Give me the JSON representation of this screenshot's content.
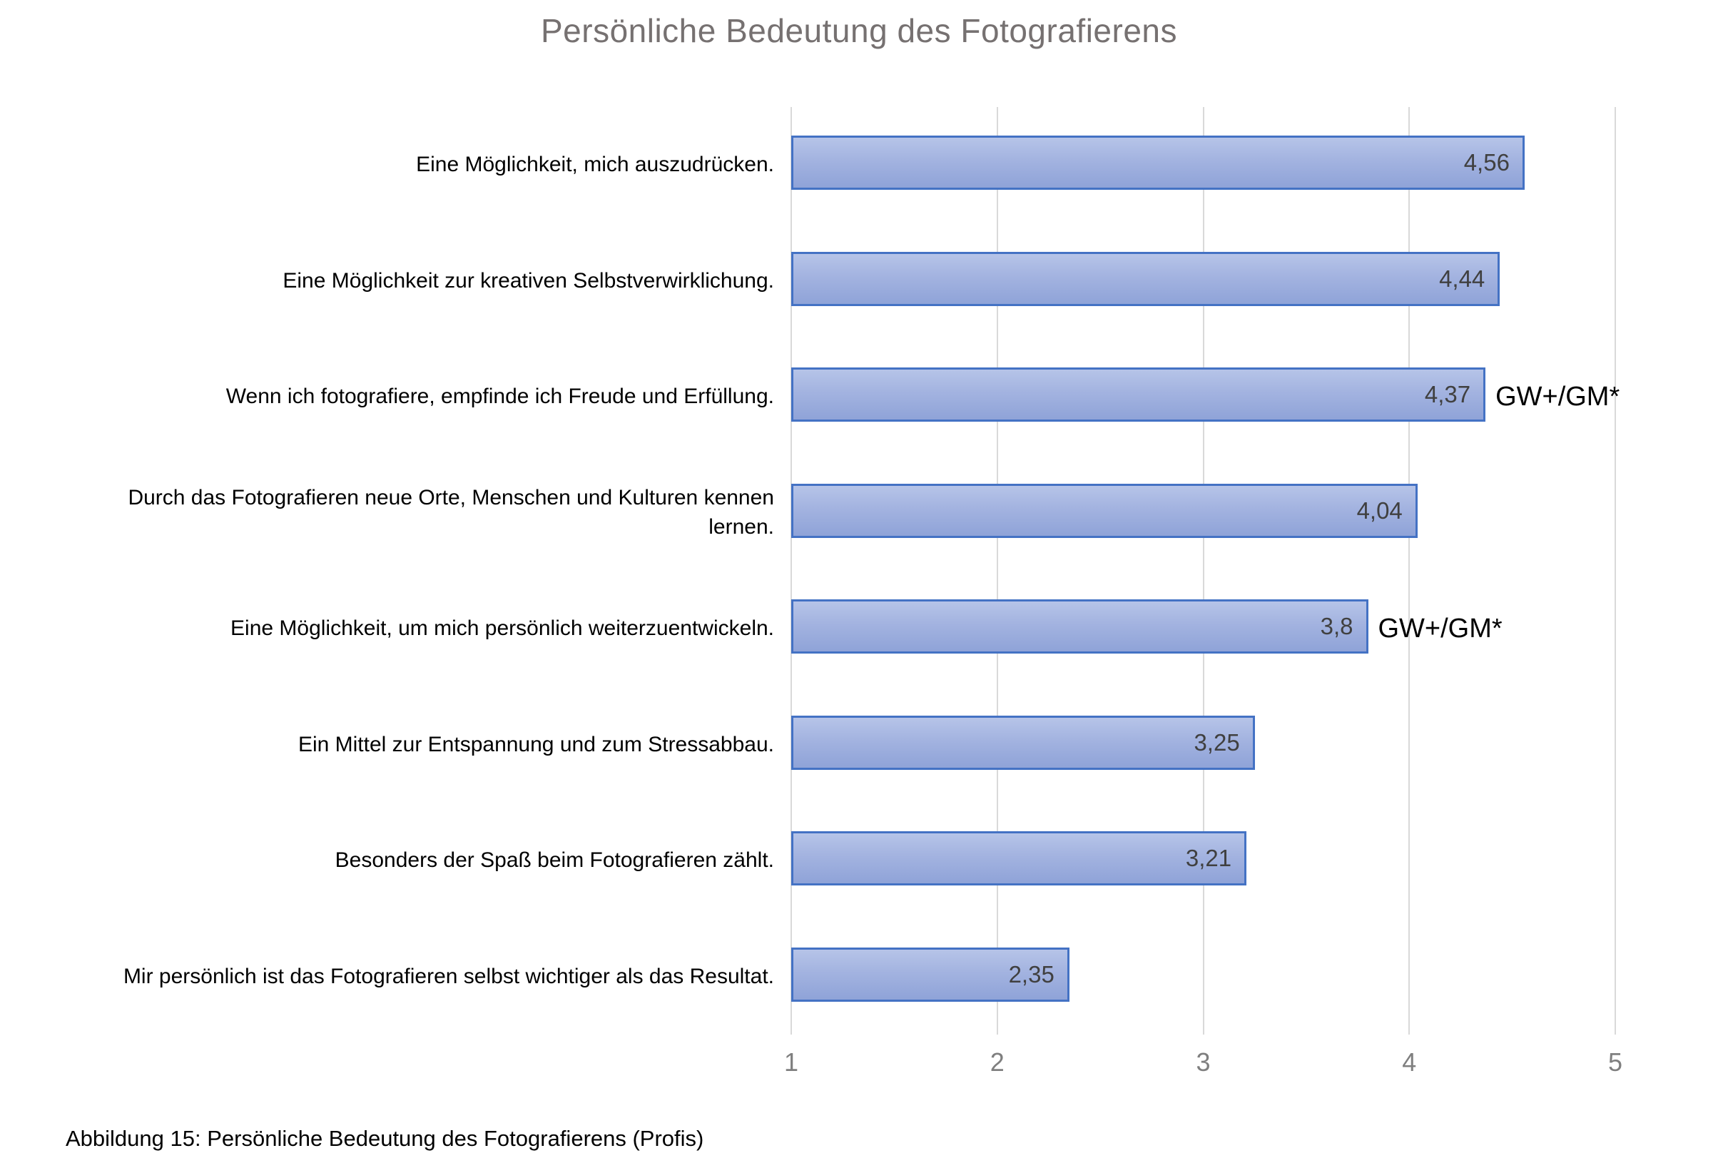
{
  "title": "Persönliche Bedeutung des Fotografierens",
  "caption": "Abbildung 15: Persönliche Bedeutung des Fotografierens (Profis)",
  "chart_data": {
    "type": "bar",
    "orientation": "horizontal",
    "title": "Persönliche Bedeutung des Fotografierens",
    "categories": [
      "Eine Möglichkeit, mich auszudrücken.",
      "Eine Möglichkeit zur kreativen Selbstverwirklichung.",
      "Wenn ich fotografiere, empfinde ich Freude und Erfüllung.",
      "Durch das Fotografieren neue Orte, Menschen und Kulturen kennen lernen.",
      "Eine Möglichkeit, um mich persönlich weiterzuentwickeln.",
      "Ein Mittel zur Entspannung und zum Stressabbau.",
      "Besonders der Spaß beim Fotografieren zählt.",
      "Mir persönlich ist das Fotografieren selbst wichtiger als das Resultat."
    ],
    "values": [
      4.56,
      4.44,
      4.37,
      4.04,
      3.8,
      3.25,
      3.21,
      2.35
    ],
    "value_labels": [
      "4,56",
      "4,44",
      "4,37",
      "4,04",
      "3,8",
      "3,25",
      "3,21",
      "2,35"
    ],
    "annotations": [
      "",
      "",
      "GW+/GM*",
      "",
      "GW+/GM*",
      "",
      "",
      ""
    ],
    "xlim": [
      1,
      5
    ],
    "x_ticks": [
      "1",
      "2",
      "3",
      "4",
      "5"
    ],
    "grid": "vertical-major",
    "legend": "none",
    "colors": {
      "bar_fill_top": "#b6c4e8",
      "bar_fill_bottom": "#8fa3d8",
      "bar_border": "#4472c4",
      "gridline": "#d9d9d9",
      "title_text": "#767171",
      "axis_text": "#7f7f7f",
      "value_text": "#404040",
      "label_text": "#000000"
    }
  }
}
